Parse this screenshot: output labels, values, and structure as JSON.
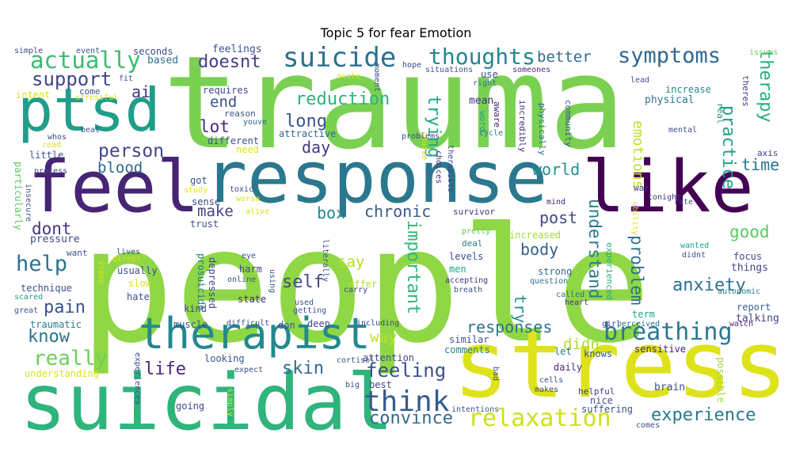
{
  "chart_data": {
    "type": "wordcloud",
    "title": "Topic 5 for fear Emotion",
    "words": [
      {
        "text": "people",
        "color": "#8fd744"
      },
      {
        "text": "trauma",
        "color": "#7ad151"
      },
      {
        "text": "stress",
        "color": "#dde318"
      },
      {
        "text": "suicidal",
        "color": "#2fb47c"
      },
      {
        "text": "response",
        "color": "#2a788e"
      },
      {
        "text": "feel",
        "color": "#482475"
      },
      {
        "text": "like",
        "color": "#440154"
      },
      {
        "text": "ptsd",
        "color": "#1f9e89"
      },
      {
        "text": "therapist",
        "color": "#23898e"
      },
      {
        "text": "suicide",
        "color": "#2c728e"
      },
      {
        "text": "breathing",
        "color": "#2a788e"
      },
      {
        "text": "actually",
        "color": "#3bbb75"
      },
      {
        "text": "thoughts",
        "color": "#23898e"
      },
      {
        "text": "symptoms",
        "color": "#31688e"
      },
      {
        "text": "think",
        "color": "#375a8c"
      },
      {
        "text": "relaxation",
        "color": "#cde11d"
      },
      {
        "text": "convince",
        "color": "#31688e"
      },
      {
        "text": "experience",
        "color": "#2a788e"
      },
      {
        "text": "help",
        "color": "#2c728e"
      },
      {
        "text": "really",
        "color": "#6ece58"
      },
      {
        "text": "support",
        "color": "#3e4a89"
      },
      {
        "text": "person",
        "color": "#3f4788"
      },
      {
        "text": "feeling",
        "color": "#3b528b"
      },
      {
        "text": "anxiety",
        "color": "#2e6f8e"
      },
      {
        "text": "know",
        "color": "#2c728e"
      },
      {
        "text": "life",
        "color": "#482878"
      },
      {
        "text": "pain",
        "color": "#3b528b"
      },
      {
        "text": "self",
        "color": "#3e4989"
      },
      {
        "text": "skin",
        "color": "#31688e"
      },
      {
        "text": "reduction",
        "color": "#2db27d"
      },
      {
        "text": "understand",
        "color": "#287c8e"
      },
      {
        "text": "important",
        "color": "#35b779"
      },
      {
        "text": "doesnt",
        "color": "#433e85"
      },
      {
        "text": "world",
        "color": "#21918c"
      },
      {
        "text": "responses",
        "color": "#2c728e"
      },
      {
        "text": "chronic",
        "color": "#38598c"
      },
      {
        "text": "good",
        "color": "#5ec962"
      },
      {
        "text": "lot",
        "color": "#482878"
      },
      {
        "text": "dont",
        "color": "#46337e"
      },
      {
        "text": "emotions",
        "color": "#c2df23"
      },
      {
        "text": "therapy",
        "color": "#26ad81"
      },
      {
        "text": "long",
        "color": "#39558c"
      },
      {
        "text": "trying",
        "color": "#22a884"
      },
      {
        "text": "practice",
        "color": "#1fa187"
      },
      {
        "text": "body",
        "color": "#355f8d"
      },
      {
        "text": "problem",
        "color": "#2c728e"
      },
      {
        "text": "post",
        "color": "#3e4989"
      },
      {
        "text": "time",
        "color": "#2a768e"
      },
      {
        "text": "make",
        "color": "#414487"
      },
      {
        "text": "box",
        "color": "#24868e"
      },
      {
        "text": "end",
        "color": "#3b528b"
      },
      {
        "text": "day",
        "color": "#443a83"
      },
      {
        "text": "better",
        "color": "#2e6e8e"
      },
      {
        "text": "say",
        "color": "#b5de2b"
      },
      {
        "text": "way",
        "color": "#c0df25"
      },
      {
        "text": "didn",
        "color": "#addc30"
      },
      {
        "text": "try",
        "color": "#1f948c"
      },
      {
        "text": "blood",
        "color": "#31688e"
      },
      {
        "text": "ai",
        "color": "#46327e"
      },
      {
        "text": "mean",
        "color": "#46307e"
      },
      {
        "text": "aware",
        "color": "#482071"
      },
      {
        "text": "incredibly",
        "color": "#46337e"
      },
      {
        "text": "physically",
        "color": "#2d718e"
      },
      {
        "text": "community",
        "color": "#39568c"
      },
      {
        "text": "physical",
        "color": "#2a788e"
      },
      {
        "text": "mental",
        "color": "#3b528b"
      },
      {
        "text": "real",
        "color": "#21918c"
      },
      {
        "text": "theres",
        "color": "#433e85"
      },
      {
        "text": "axis",
        "color": "#414487"
      },
      {
        "text": "issues",
        "color": "#6ece58"
      },
      {
        "text": "increase",
        "color": "#25858e"
      },
      {
        "text": "lead",
        "color": "#3b528b"
      },
      {
        "text": "war",
        "color": "#453781"
      },
      {
        "text": "tonight",
        "color": "#46337e"
      },
      {
        "text": "rate",
        "color": "#3e4a89"
      },
      {
        "text": "mind",
        "color": "#482475"
      },
      {
        "text": "survivor",
        "color": "#46337e"
      },
      {
        "text": "increased",
        "color": "#a0da39"
      },
      {
        "text": "experienced",
        "color": "#29af7f"
      },
      {
        "text": "ability",
        "color": "#dde318"
      },
      {
        "text": "wanted",
        "color": "#1fa088"
      },
      {
        "text": "didnt",
        "color": "#3b528b"
      },
      {
        "text": "focus",
        "color": "#3e4989"
      },
      {
        "text": "things",
        "color": "#3e4989"
      },
      {
        "text": "autonomic",
        "color": "#27808e"
      },
      {
        "text": "report",
        "color": "#32648e"
      },
      {
        "text": "talking",
        "color": "#414487"
      },
      {
        "text": "watch",
        "color": "#482878"
      },
      {
        "text": "sensitive",
        "color": "#482173"
      },
      {
        "text": "knows",
        "color": "#39568c"
      },
      {
        "text": "nice",
        "color": "#3b528b"
      },
      {
        "text": "brain",
        "color": "#3b528b"
      },
      {
        "text": "possible",
        "color": "#9bd93c"
      },
      {
        "text": "term",
        "color": "#22a884"
      },
      {
        "text": "suffering",
        "color": "#3b528b"
      },
      {
        "text": "helpful",
        "color": "#453781"
      },
      {
        "text": "makes",
        "color": "#404688"
      },
      {
        "text": "cells",
        "color": "#3e4a89"
      },
      {
        "text": "daily",
        "color": "#482878"
      },
      {
        "text": "let",
        "color": "#2a788e"
      },
      {
        "text": "comments",
        "color": "#25848e"
      },
      {
        "text": "similar",
        "color": "#3b528b"
      },
      {
        "text": "girl",
        "color": "#3e4a89"
      },
      {
        "text": "perceived",
        "color": "#2e6e8e"
      },
      {
        "text": "heart",
        "color": "#443983"
      },
      {
        "text": "called",
        "color": "#2c738e"
      },
      {
        "text": "strong",
        "color": "#31688e"
      },
      {
        "text": "question",
        "color": "#2c728e"
      },
      {
        "text": "breath",
        "color": "#3b528b"
      },
      {
        "text": "accepting",
        "color": "#46337e"
      },
      {
        "text": "men",
        "color": "#22a884"
      },
      {
        "text": "levels",
        "color": "#3e4989"
      },
      {
        "text": "deal",
        "color": "#26828e"
      },
      {
        "text": "pretty",
        "color": "#5ec962"
      },
      {
        "text": "offer",
        "color": "#b8de29"
      },
      {
        "text": "carry",
        "color": "#3e4a89"
      },
      {
        "text": "literally",
        "color": "#3b528b"
      },
      {
        "text": "choices",
        "color": "#482878"
      },
      {
        "text": "therapists",
        "color": "#3e4a89"
      },
      {
        "text": "course",
        "color": "#dde318"
      },
      {
        "text": "problems",
        "color": "#3e4989"
      },
      {
        "text": "situations",
        "color": "#3b528b"
      },
      {
        "text": "hope",
        "color": "#3e4a89"
      },
      {
        "text": "someones",
        "color": "#472c7a"
      },
      {
        "text": "right",
        "color": "#2c728e"
      },
      {
        "text": "use",
        "color": "#3e4989"
      },
      {
        "text": "word",
        "color": "#1fa187"
      },
      {
        "text": "cycle",
        "color": "#2a788e"
      },
      {
        "text": "acute",
        "color": "#dde318"
      },
      {
        "text": "moment",
        "color": "#3b528b"
      },
      {
        "text": "attractive",
        "color": "#31688e"
      },
      {
        "text": "reason",
        "color": "#3b528b"
      },
      {
        "text": "youve",
        "color": "#31688e"
      },
      {
        "text": "requires",
        "color": "#3e4989"
      },
      {
        "text": "feelings",
        "color": "#3b528b"
      },
      {
        "text": "seconds",
        "color": "#3e4989"
      },
      {
        "text": "based",
        "color": "#2c728e"
      },
      {
        "text": "event",
        "color": "#3b528b"
      },
      {
        "text": "fit",
        "color": "#3b528b"
      },
      {
        "text": "come",
        "color": "#3b528b"
      },
      {
        "text": "stressful",
        "color": "#dde318"
      },
      {
        "text": "simple",
        "color": "#3e4989"
      },
      {
        "text": "intent",
        "color": "#dde318"
      },
      {
        "text": "beat",
        "color": "#3b528b"
      },
      {
        "text": "whos",
        "color": "#3b528b"
      },
      {
        "text": "read",
        "color": "#dde318"
      },
      {
        "text": "little",
        "color": "#3b528b"
      },
      {
        "text": "process",
        "color": "#3e4989"
      },
      {
        "text": "particularly",
        "color": "#5ec962"
      },
      {
        "text": "insecure",
        "color": "#3b528b"
      },
      {
        "text": "pressure",
        "color": "#3e4989"
      },
      {
        "text": "want",
        "color": "#3b528b"
      },
      {
        "text": "video",
        "color": "#dde318"
      },
      {
        "text": "technique",
        "color": "#3b528b"
      },
      {
        "text": "scared",
        "color": "#1fa187"
      },
      {
        "text": "great",
        "color": "#3b528b"
      },
      {
        "text": "traumatic",
        "color": "#2a788e"
      },
      {
        "text": "understanding",
        "color": "#dde318"
      },
      {
        "text": "experiences",
        "color": "#3e4989"
      },
      {
        "text": "lives",
        "color": "#3b528b"
      },
      {
        "text": "direct",
        "color": "#dde318"
      },
      {
        "text": "usually",
        "color": "#3e4989"
      },
      {
        "text": "slow",
        "color": "#dde318"
      },
      {
        "text": "hate",
        "color": "#3b528b"
      },
      {
        "text": "kind",
        "color": "#3e4989"
      },
      {
        "text": "muscle",
        "color": "#3b528b"
      },
      {
        "text": "looking",
        "color": "#3b528b"
      },
      {
        "text": "going",
        "color": "#3e4989"
      },
      {
        "text": "simply",
        "color": "#dde318"
      },
      {
        "text": "expect",
        "color": "#3b528b"
      },
      {
        "text": "difficult",
        "color": "#3e4989"
      },
      {
        "text": "don",
        "color": "#3b528b"
      },
      {
        "text": "deep",
        "color": "#3e4989"
      },
      {
        "text": "getting",
        "color": "#3b528b"
      },
      {
        "text": "used",
        "color": "#3b528b"
      },
      {
        "text": "including",
        "color": "#3e4989"
      },
      {
        "text": "attention",
        "color": "#3e4989"
      },
      {
        "text": "cortisol",
        "color": "#3b528b"
      },
      {
        "text": "big",
        "color": "#3e4989"
      },
      {
        "text": "best",
        "color": "#3e4989"
      },
      {
        "text": "bad",
        "color": "#3b528b"
      },
      {
        "text": "intentions",
        "color": "#3b528b"
      },
      {
        "text": "comes",
        "color": "#3b528b"
      },
      {
        "text": "state",
        "color": "#482878"
      },
      {
        "text": "online",
        "color": "#3b528b"
      },
      {
        "text": "harm",
        "color": "#3e4989"
      },
      {
        "text": "eye",
        "color": "#3b528b"
      },
      {
        "text": "prosuicide",
        "color": "#2a788e"
      },
      {
        "text": "depressed",
        "color": "#3e4989"
      },
      {
        "text": "trust",
        "color": "#3b528b"
      },
      {
        "text": "sense",
        "color": "#3e4989"
      },
      {
        "text": "alive",
        "color": "#dde318"
      },
      {
        "text": "study",
        "color": "#dde318"
      },
      {
        "text": "got",
        "color": "#3b528b"
      },
      {
        "text": "toxic",
        "color": "#3e4989"
      },
      {
        "text": "worse",
        "color": "#dde318"
      },
      {
        "text": "using",
        "color": "#3b528b"
      },
      {
        "text": "need",
        "color": "#dde318"
      },
      {
        "text": "different",
        "color": "#3b528b"
      }
    ]
  }
}
